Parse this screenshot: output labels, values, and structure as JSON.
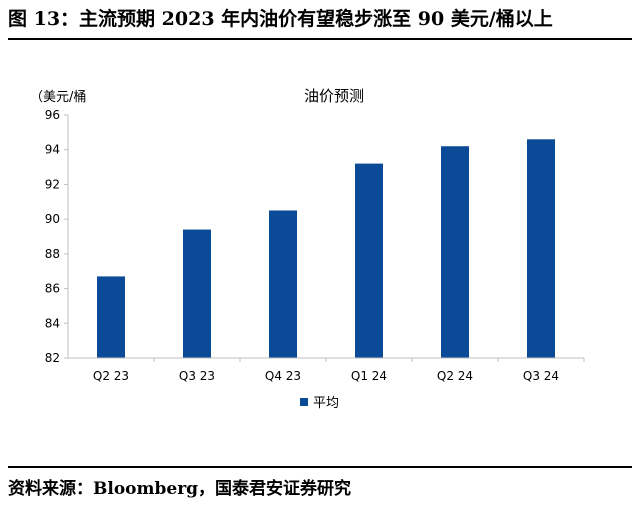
{
  "figure": {
    "title": "图 13：主流预期 2023 年内油价有望稳步涨至 90 美元/桶以上",
    "source": "资料来源：Bloomberg，国泰君安证券研究"
  },
  "colors": {
    "bar": "#0b4a96",
    "axis": "#bfbfbf"
  },
  "chart_data": {
    "type": "bar",
    "title": "油价预测",
    "ylabel": "（美元/桶",
    "categories": [
      "Q2 23",
      "Q3 23",
      "Q4 23",
      "Q1 24",
      "Q2 24",
      "Q3 24"
    ],
    "series": [
      {
        "name": "平均",
        "values": [
          86.7,
          89.4,
          90.5,
          93.2,
          94.2,
          94.6
        ]
      }
    ],
    "ylim": [
      82,
      96
    ],
    "yticks": [
      82,
      84,
      86,
      88,
      90,
      92,
      94,
      96
    ],
    "grid": false,
    "legend": "bottom-center"
  }
}
